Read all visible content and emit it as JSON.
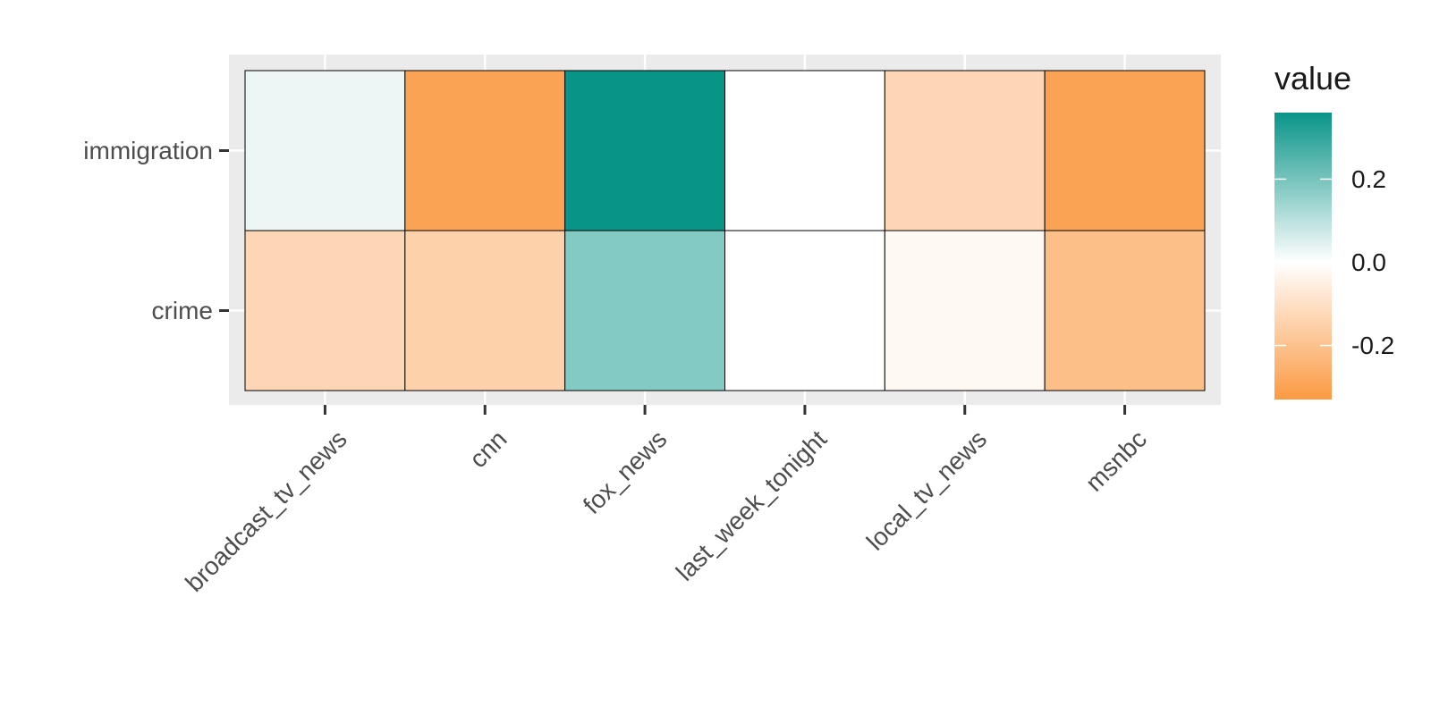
{
  "chart_data": {
    "type": "heatmap",
    "title": "",
    "xlabel": "",
    "ylabel": "",
    "x_categories": [
      "broadcast_tv_news",
      "cnn",
      "fox_news",
      "last_week_tonight",
      "local_tv_news",
      "msnbc"
    ],
    "y_categories": [
      "immigration",
      "crime"
    ],
    "values": [
      [
        0.03,
        -0.3,
        0.36,
        0.0,
        -0.13,
        -0.3
      ],
      [
        -0.13,
        -0.15,
        0.18,
        0.0,
        -0.02,
        -0.21
      ]
    ],
    "legend": {
      "title": "value",
      "ticks": [
        0.2,
        0.0,
        -0.2
      ],
      "tick_labels": [
        "0.2",
        "0.0",
        "-0.2"
      ],
      "range": [
        -0.33,
        0.36
      ],
      "placement": "right"
    },
    "colors": {
      "low": "#fb9a43",
      "mid": "#ffffff",
      "high": "#099488",
      "panel_background": "#ebebeb",
      "grid": "#ffffff",
      "tile_border": "#000000"
    }
  }
}
